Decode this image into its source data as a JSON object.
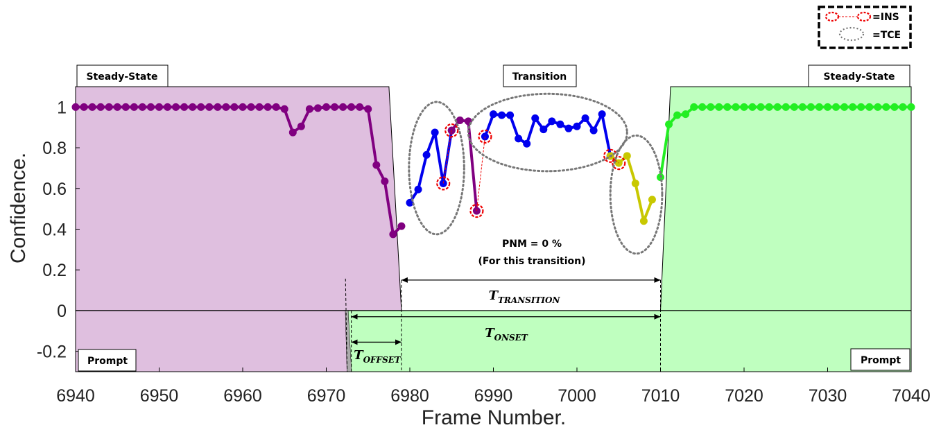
{
  "chart_data": {
    "type": "line",
    "xlabel": "Frame Number.",
    "ylabel": "Confidence.",
    "xlim": [
      6940,
      7040
    ],
    "ylim": [
      -0.3,
      1.1
    ],
    "xticks": [
      6940,
      6950,
      6960,
      6970,
      6980,
      6990,
      7000,
      7010,
      7020,
      7030,
      7040
    ],
    "yticks": [
      "-0.2",
      "0",
      "0.2",
      "0.4",
      "0.6",
      "0.8",
      "1"
    ],
    "grid": false,
    "colors": {
      "purple_series": "#800080",
      "blue_series": "#0000ee",
      "yellow_series": "#c8c800",
      "green_series": "#22ee22",
      "purple_region": "#dfbfdf",
      "green_region": "#bfffbf",
      "ins_marker": "#ee0000",
      "tce_ellipse": "#777777"
    },
    "series": [
      {
        "color_key": "purple_series",
        "points": [
          [
            6940,
            1
          ],
          [
            6941,
            1
          ],
          [
            6942,
            1
          ],
          [
            6943,
            1
          ],
          [
            6944,
            1
          ],
          [
            6945,
            1
          ],
          [
            6946,
            1
          ],
          [
            6947,
            1
          ],
          [
            6948,
            1
          ],
          [
            6949,
            1
          ],
          [
            6950,
            1
          ],
          [
            6951,
            1
          ],
          [
            6952,
            1
          ],
          [
            6953,
            1
          ],
          [
            6954,
            1
          ],
          [
            6955,
            1
          ],
          [
            6956,
            1
          ],
          [
            6957,
            1
          ],
          [
            6958,
            1
          ],
          [
            6959,
            1
          ],
          [
            6960,
            1
          ],
          [
            6961,
            1
          ],
          [
            6962,
            1
          ],
          [
            6963,
            1
          ],
          [
            6964,
            1
          ],
          [
            6965,
            0.99
          ],
          [
            6966,
            0.875
          ],
          [
            6967,
            0.905
          ],
          [
            6968,
            0.99
          ],
          [
            6969,
            0.995
          ],
          [
            6970,
            1
          ],
          [
            6971,
            1
          ],
          [
            6972,
            1
          ],
          [
            6973,
            1
          ],
          [
            6974,
            1
          ],
          [
            6975,
            0.99
          ],
          [
            6976,
            0.715
          ],
          [
            6977,
            0.635
          ],
          [
            6978,
            0.375
          ],
          [
            6979,
            0.415
          ]
        ]
      },
      {
        "color_key": "blue_series",
        "points": [
          [
            6980,
            0.53
          ],
          [
            6981,
            0.595
          ],
          [
            6982,
            0.765
          ],
          [
            6983,
            0.875
          ],
          [
            6984,
            0.625
          ],
          [
            6985,
            0.885
          ]
        ]
      },
      {
        "color_key": "purple_series",
        "points": [
          [
            6985,
            0.885
          ],
          [
            6986,
            0.935
          ],
          [
            6987,
            0.93
          ],
          [
            6988,
            0.49
          ]
        ]
      },
      {
        "color_key": "blue_series",
        "points": [
          [
            6989,
            0.855
          ],
          [
            6990,
            0.965
          ],
          [
            6991,
            0.96
          ],
          [
            6992,
            0.96
          ],
          [
            6993,
            0.845
          ],
          [
            6994,
            0.82
          ],
          [
            6995,
            0.945
          ],
          [
            6996,
            0.89
          ],
          [
            6997,
            0.93
          ],
          [
            6998,
            0.915
          ],
          [
            6999,
            0.895
          ],
          [
            7000,
            0.905
          ],
          [
            7001,
            0.945
          ],
          [
            7002,
            0.885
          ],
          [
            7003,
            0.965
          ],
          [
            7004,
            0.76
          ]
        ]
      },
      {
        "color_key": "yellow_series",
        "points": [
          [
            7004,
            0.76
          ],
          [
            7005,
            0.725
          ],
          [
            7006,
            0.76
          ],
          [
            7007,
            0.625
          ],
          [
            7008,
            0.44
          ],
          [
            7009,
            0.545
          ]
        ]
      },
      {
        "color_key": "green_series",
        "points": [
          [
            7010,
            0.655
          ],
          [
            7011,
            0.915
          ],
          [
            7012,
            0.96
          ],
          [
            7013,
            0.965
          ],
          [
            7014,
            1
          ],
          [
            7015,
            1
          ],
          [
            7016,
            1
          ],
          [
            7017,
            1
          ],
          [
            7018,
            1
          ],
          [
            7019,
            1
          ],
          [
            7020,
            1
          ],
          [
            7021,
            1
          ],
          [
            7022,
            1
          ],
          [
            7023,
            1
          ],
          [
            7024,
            1
          ],
          [
            7025,
            1
          ],
          [
            7026,
            1
          ],
          [
            7027,
            1
          ],
          [
            7028,
            1
          ],
          [
            7029,
            1
          ],
          [
            7030,
            1
          ],
          [
            7031,
            1
          ],
          [
            7032,
            1
          ],
          [
            7033,
            1
          ],
          [
            7034,
            1
          ],
          [
            7035,
            1
          ],
          [
            7036,
            1
          ],
          [
            7037,
            1
          ],
          [
            7038,
            1
          ],
          [
            7039,
            1
          ],
          [
            7040,
            1
          ]
        ]
      }
    ],
    "ins_markers": [
      [
        6984,
        0.625
      ],
      [
        6985,
        0.885
      ],
      [
        6988,
        0.49
      ],
      [
        6989,
        0.855
      ],
      [
        7004,
        0.76
      ],
      [
        7005,
        0.725
      ]
    ],
    "ins_links": [
      [
        [
          6984,
          0.625
        ],
        [
          6985,
          0.885
        ]
      ],
      [
        [
          6988,
          0.49
        ],
        [
          6989,
          0.855
        ]
      ],
      [
        [
          7004,
          0.76
        ],
        [
          7005,
          0.725
        ]
      ]
    ],
    "tce_ellipses": [
      {
        "cx": 6983.2,
        "cy": 0.7,
        "rx": 3.3,
        "ry": 0.325
      },
      {
        "cx": 6996.5,
        "cy": 0.875,
        "rx": 9.5,
        "ry": 0.19
      },
      {
        "cx": 7007.1,
        "cy": 0.57,
        "rx": 3.1,
        "ry": 0.29
      }
    ],
    "regions": {
      "offset_frame": 6972.3,
      "onset_frame": 6973,
      "transition_start": 6979,
      "transition_end": 7010,
      "upper_left_top": 6977.5,
      "upper_right_top": 7011.2,
      "region_top": 1.1,
      "arrow_y_transition": 0.15,
      "arrow_y_onset": -0.03,
      "arrow_y_offset": -0.155
    },
    "annotations": {
      "steady_state_left": "Steady-State",
      "transition": "Transition",
      "steady_state_right": "Steady-State",
      "prompt_left": "Prompt",
      "prompt_right": "Prompt",
      "pnm_line1": "PNM = 0 %",
      "pnm_line2": "(For this transition)",
      "t_transition_main": "T",
      "t_transition_sub": "TRANSITION",
      "t_onset_main": "T",
      "t_onset_sub": "ONSET",
      "t_offset_main": "T",
      "t_offset_sub": "OFFSET",
      "legend_ins": "=INS",
      "legend_tce": "=TCE"
    }
  }
}
